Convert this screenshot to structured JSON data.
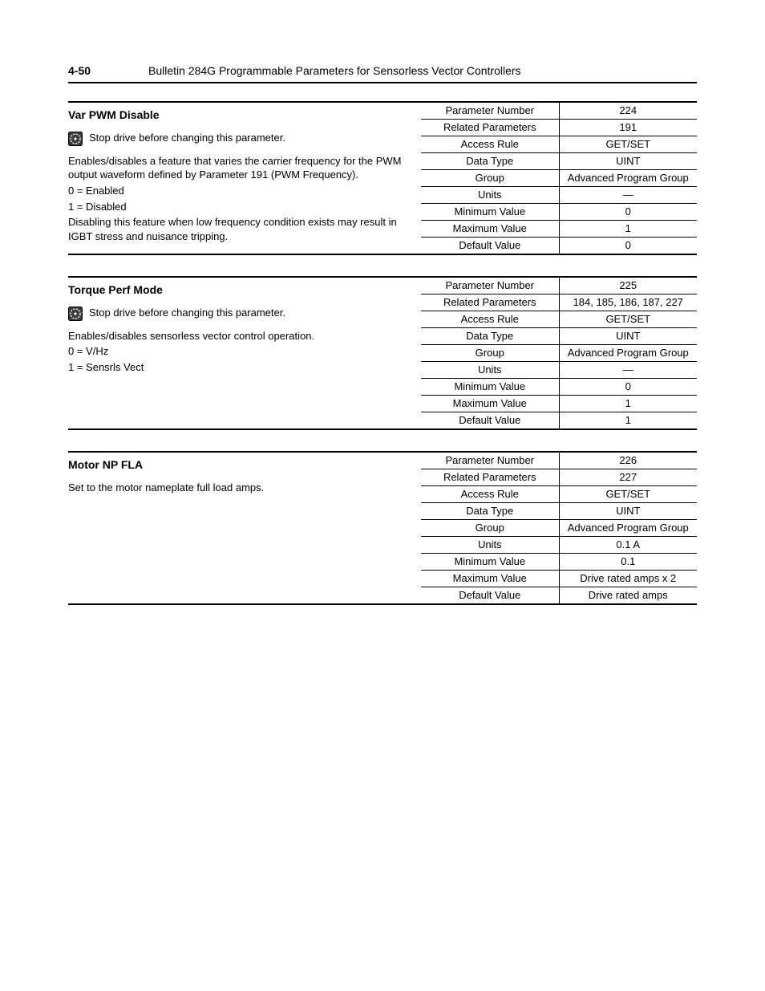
{
  "header": {
    "pageNumber": "4-50",
    "title": "Bulletin 284G Programmable Parameters for Sensorless Vector Controllers"
  },
  "warnText": "Stop drive before changing this parameter.",
  "params": [
    {
      "title": "Var PWM Disable",
      "hasWarn": true,
      "descLines": [
        "Enables/disables a feature that varies the carrier frequency for the PWM output waveform defined by Parameter 191 (PWM Frequency).",
        "0 = Enabled",
        "1 = Disabled",
        "Disabling this feature when low frequency condition exists may result in IGBT stress and nuisance tripping."
      ],
      "rows": [
        {
          "k": "Parameter Number",
          "v": "224"
        },
        {
          "k": "Related Parameters",
          "v": "191"
        },
        {
          "k": "Access Rule",
          "v": "GET/SET"
        },
        {
          "k": "Data Type",
          "v": "UINT"
        },
        {
          "k": "Group",
          "v": "Advanced Program Group"
        },
        {
          "k": "Units",
          "v": "—"
        },
        {
          "k": "Minimum Value",
          "v": "0"
        },
        {
          "k": "Maximum Value",
          "v": "1"
        },
        {
          "k": "Default Value",
          "v": "0"
        }
      ]
    },
    {
      "title": "Torque Perf Mode",
      "hasWarn": true,
      "descLines": [
        "Enables/disables sensorless vector control operation.",
        "0 = V/Hz",
        "1 = Sensrls Vect"
      ],
      "rows": [
        {
          "k": "Parameter Number",
          "v": "225"
        },
        {
          "k": "Related Parameters",
          "v": "184, 185, 186, 187, 227"
        },
        {
          "k": "Access Rule",
          "v": "GET/SET"
        },
        {
          "k": "Data Type",
          "v": "UINT"
        },
        {
          "k": "Group",
          "v": "Advanced Program Group"
        },
        {
          "k": "Units",
          "v": "—"
        },
        {
          "k": "Minimum Value",
          "v": "0"
        },
        {
          "k": "Maximum Value",
          "v": "1"
        },
        {
          "k": "Default Value",
          "v": "1"
        }
      ]
    },
    {
      "title": "Motor NP FLA",
      "hasWarn": false,
      "descLines": [
        "Set to the motor nameplate full load amps."
      ],
      "rows": [
        {
          "k": "Parameter Number",
          "v": "226"
        },
        {
          "k": "Related Parameters",
          "v": "227"
        },
        {
          "k": "Access Rule",
          "v": "GET/SET"
        },
        {
          "k": "Data Type",
          "v": "UINT"
        },
        {
          "k": "Group",
          "v": "Advanced Program Group"
        },
        {
          "k": "Units",
          "v": "0.1 A"
        },
        {
          "k": "Minimum Value",
          "v": "0.1"
        },
        {
          "k": "Maximum Value",
          "v": "Drive rated amps x 2"
        },
        {
          "k": "Default Value",
          "v": "Drive rated amps"
        }
      ]
    }
  ]
}
